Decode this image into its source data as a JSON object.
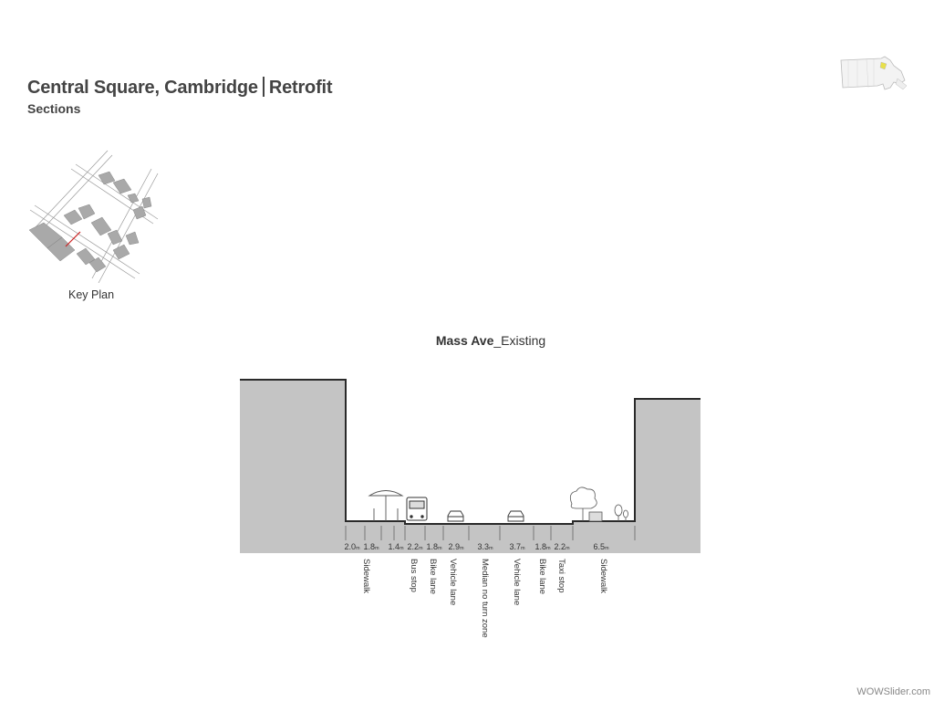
{
  "header": {
    "title_main": "Central Square, Cambridge",
    "title_suffix": "Retrofit",
    "subtitle": "Sections"
  },
  "key_plan": {
    "label": "Key Plan"
  },
  "section": {
    "title_bold": "Mass Ave",
    "title_rest": "_Existing",
    "widths": [
      "2.0",
      "1.8",
      "1.4",
      "2.2",
      "1.8",
      "2.9",
      "3.3",
      "3.7",
      "1.8",
      "2.2",
      "6.5"
    ],
    "unit": "m",
    "zones": [
      "Sidewalk",
      "Bus stop",
      "Bike lane",
      "Vehicle lane",
      "Median no turn zone",
      "Vehicle lane",
      "Bike lane",
      "Taxi stop",
      "Sidewalk"
    ]
  },
  "watermark": "WOWSlider.com",
  "colors": {
    "building": "#c4c4c4",
    "outline": "#2a2a2a",
    "keyplan_marker": "#cc2222",
    "state_highlight": "#e8e04a"
  }
}
